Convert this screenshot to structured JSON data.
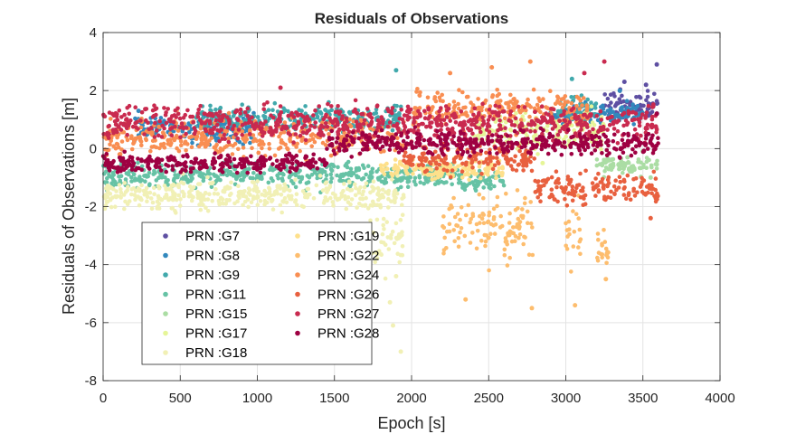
{
  "chart_data": {
    "type": "scatter",
    "title": "Residuals of Observations",
    "xlabel": "Epoch [s]",
    "ylabel": "Residuals of Observations [m]",
    "xlim": [
      0,
      4000
    ],
    "ylim": [
      -8,
      4
    ],
    "xticks": [
      0,
      500,
      1000,
      1500,
      2000,
      2500,
      3000,
      3500,
      4000
    ],
    "yticks": [
      -8,
      -6,
      -4,
      -2,
      0,
      2,
      4
    ],
    "grid": true,
    "legend_position": "lower-left",
    "series": [
      {
        "name": "PRN :G7",
        "color": "#5e4fa2",
        "spans": [
          [
            3250,
            3600,
            1.5,
            0.4
          ]
        ],
        "extremes": [
          [
            3380,
            2.3
          ],
          [
            3520,
            2.2
          ],
          [
            3590,
            2.9
          ]
        ]
      },
      {
        "name": "PRN :G8",
        "color": "#3288bd",
        "spans": [
          [
            200,
            1000,
            0.7,
            0.4
          ],
          [
            2900,
            3500,
            1.2,
            0.3
          ]
        ],
        "extremes": [
          [
            230,
            1.3
          ],
          [
            3350,
            2.0
          ]
        ]
      },
      {
        "name": "PRN :G9",
        "color": "#41a9ac",
        "spans": [
          [
            600,
            1950,
            1.0,
            0.4
          ],
          [
            2950,
            3200,
            1.4,
            0.3
          ]
        ],
        "extremes": [
          [
            1900,
            2.7
          ],
          [
            3040,
            2.4
          ]
        ]
      },
      {
        "name": "PRN :G11",
        "color": "#66c2a5",
        "spans": [
          [
            0,
            2300,
            -0.9,
            0.35
          ],
          [
            2300,
            2600,
            -1.1,
            0.3
          ]
        ],
        "extremes": [
          [
            1910,
            -1.4
          ],
          [
            1600,
            -1.3
          ]
        ]
      },
      {
        "name": "PRN :G15",
        "color": "#abdda4",
        "spans": [
          [
            3200,
            3600,
            -0.6,
            0.3
          ]
        ],
        "extremes": [
          [
            3400,
            -0.3
          ],
          [
            3550,
            -1.0
          ]
        ]
      },
      {
        "name": "PRN :G17",
        "color": "#e6f598",
        "spans": [
          [
            2400,
            3250,
            0.6,
            0.5
          ]
        ],
        "extremes": [
          [
            2850,
            -0.5
          ]
        ]
      },
      {
        "name": "PRN :G18",
        "color": "#f1f0b5",
        "spans": [
          [
            0,
            1950,
            -1.6,
            0.45
          ],
          [
            1700,
            1950,
            -3.0,
            1.2
          ]
        ],
        "extremes": [
          [
            1880,
            -6.1
          ],
          [
            1930,
            -7.0
          ],
          [
            1860,
            -5.3
          ],
          [
            1900,
            -4.4
          ]
        ]
      },
      {
        "name": "PRN :G19",
        "color": "#fee08b",
        "spans": [
          [
            1800,
            2600,
            -0.7,
            0.3
          ]
        ],
        "extremes": []
      },
      {
        "name": "PRN :G22",
        "color": "#fdbd6e",
        "spans": [
          [
            2200,
            2800,
            -2.7,
            0.9
          ],
          [
            3000,
            3100,
            -3.0,
            0.8
          ],
          [
            3200,
            3280,
            -3.5,
            0.6
          ]
        ],
        "extremes": [
          [
            2780,
            -5.5
          ],
          [
            3060,
            -5.4
          ],
          [
            3260,
            -4.5
          ],
          [
            2350,
            -5.2
          ]
        ]
      },
      {
        "name": "PRN :G24",
        "color": "#f98e52",
        "spans": [
          [
            0,
            1950,
            0.4,
            0.55
          ],
          [
            2000,
            3150,
            1.4,
            0.55
          ]
        ],
        "extremes": [
          [
            2520,
            2.8
          ],
          [
            2770,
            3.0
          ],
          [
            2250,
            2.6
          ]
        ]
      },
      {
        "name": "PRN :G26",
        "color": "#e8603f",
        "spans": [
          [
            1950,
            2800,
            -0.3,
            0.4
          ],
          [
            2800,
            3600,
            -1.4,
            0.45
          ]
        ],
        "extremes": [
          [
            3550,
            -2.4
          ]
        ]
      },
      {
        "name": "PRN :G27",
        "color": "#c92a4f",
        "spans": [
          [
            0,
            3600,
            0.9,
            0.5
          ]
        ],
        "extremes": [
          [
            3250,
            3.0
          ],
          [
            1150,
            2.1
          ],
          [
            3120,
            2.6
          ]
        ]
      },
      {
        "name": "PRN :G28",
        "color": "#9e0142",
        "spans": [
          [
            0,
            1450,
            -0.5,
            0.25
          ],
          [
            1450,
            3600,
            0.2,
            0.35
          ]
        ],
        "extremes": [
          [
            3590,
            1.2
          ]
        ]
      }
    ]
  }
}
